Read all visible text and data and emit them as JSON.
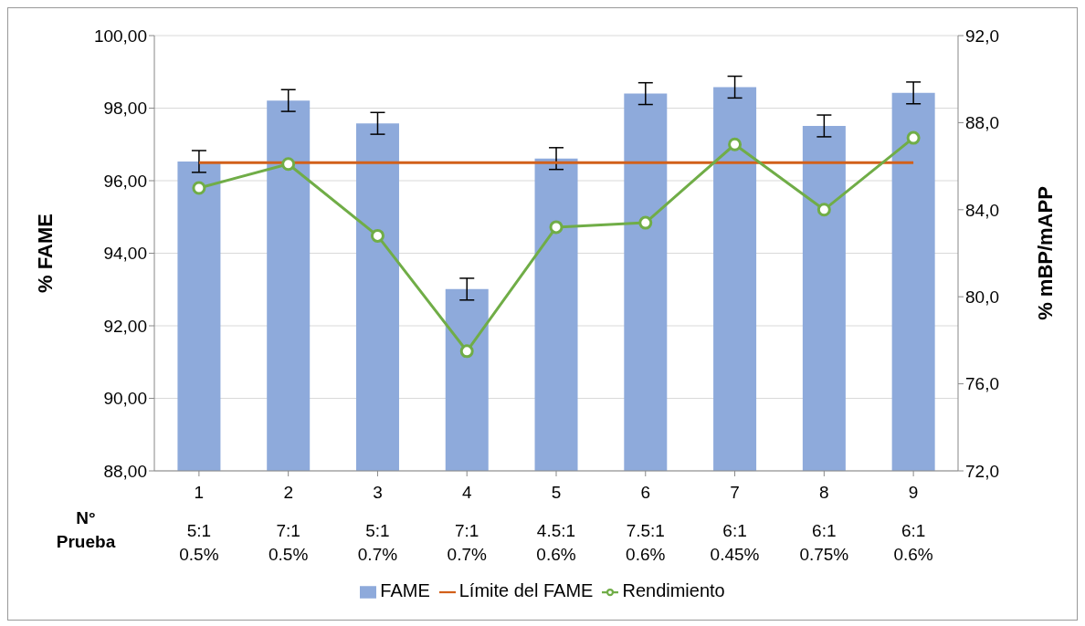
{
  "chart_data": {
    "type": "bar",
    "ylabel": "% FAME",
    "y2label": "% mBP/mAPP",
    "xlabel": "N°\nPrueba",
    "categories": [
      "1\n5:1\n0.5%",
      "2\n7:1\n0.5%",
      "3\n5:1\n0.7%",
      "4\n7:1\n0.7%",
      "5\n4.5:1\n0.6%",
      "6\n7.5:1\n0.6%",
      "7\n6:1\n0.45%",
      "8\n6:1\n0.75%",
      "9\n6:1\n0.6%"
    ],
    "series": [
      {
        "name": "FAME",
        "color": "#8eaadb",
        "values": [
          96.53,
          98.21,
          97.58,
          93.01,
          96.61,
          98.4,
          98.58,
          97.51,
          98.42
        ],
        "errors": [
          0.3,
          0.3,
          0.3,
          0.3,
          0.3,
          0.3,
          0.3,
          0.3,
          0.3
        ]
      },
      {
        "name": "Límite del FAME",
        "type": "line",
        "color": "#d2601a",
        "marker": "none",
        "values": [
          96.5,
          96.5,
          96.5,
          96.5,
          96.5,
          96.5,
          96.5,
          96.5,
          96.5
        ]
      },
      {
        "name": "Rendimiento",
        "type": "line",
        "axis": "y2",
        "color": "#70ad47",
        "marker": "circle",
        "values": [
          85.0,
          86.1,
          82.8,
          77.5,
          83.2,
          83.4,
          87.0,
          84.0,
          87.3
        ]
      }
    ],
    "ylim": [
      88,
      100
    ],
    "yticks": [
      {
        "value": 88,
        "label": "88,00"
      },
      {
        "value": 90,
        "label": "90,00"
      },
      {
        "value": 92,
        "label": "92,00"
      },
      {
        "value": 94,
        "label": "94,00"
      },
      {
        "value": 96,
        "label": "96,00"
      },
      {
        "value": 98,
        "label": "98,00"
      },
      {
        "value": 100,
        "label": "100,00"
      }
    ],
    "y2lim": [
      72,
      92
    ],
    "y2ticks": [
      {
        "value": 72,
        "label": "72,0"
      },
      {
        "value": 76,
        "label": "76,0"
      },
      {
        "value": 80,
        "label": "80,0"
      },
      {
        "value": 84,
        "label": "84,0"
      },
      {
        "value": 88,
        "label": "88,0"
      },
      {
        "value": 92,
        "label": "92,0"
      }
    ],
    "grid": "y",
    "legend": "bottom"
  }
}
